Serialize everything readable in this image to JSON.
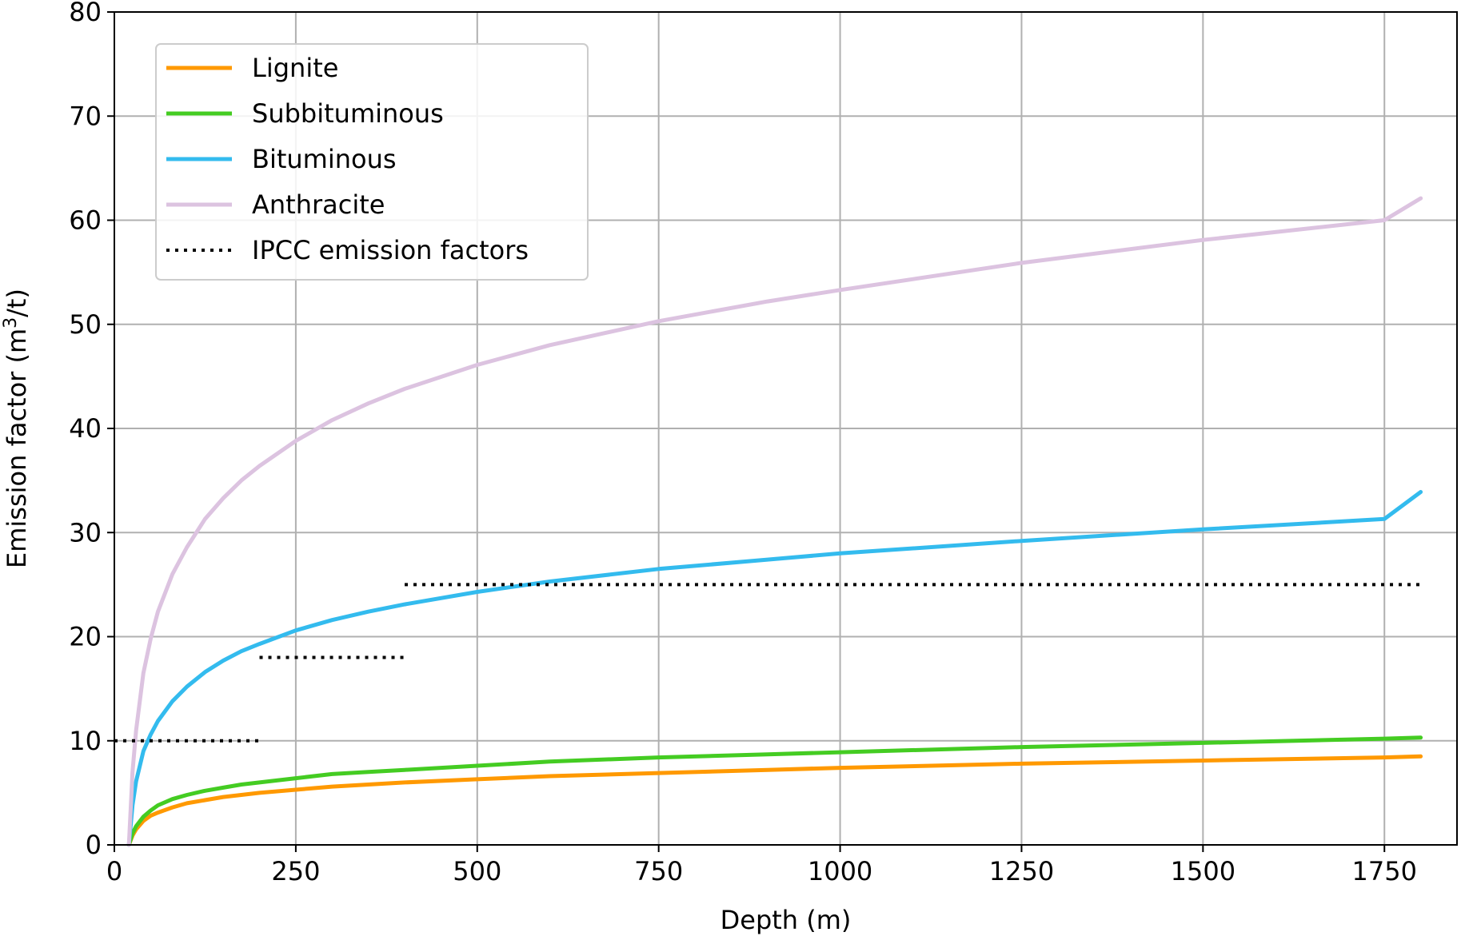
{
  "chart_data": {
    "type": "line",
    "title": "",
    "xlabel": "Depth (m)",
    "ylabel": {
      "prefix": "Emission factor (m",
      "superscript": "3",
      "suffix": "/t)"
    },
    "xlim": [
      0,
      1850
    ],
    "ylim": [
      0,
      80
    ],
    "x_ticks": [
      0,
      250,
      500,
      750,
      1000,
      1250,
      1500,
      1750
    ],
    "y_ticks": [
      0,
      10,
      20,
      30,
      40,
      50,
      60,
      70,
      80
    ],
    "grid": true,
    "legend_position": "upper-left",
    "x": [
      20,
      25,
      30,
      40,
      50,
      60,
      80,
      100,
      125,
      150,
      175,
      200,
      250,
      300,
      350,
      400,
      500,
      600,
      750,
      900,
      1000,
      1250,
      1500,
      1750,
      1800
    ],
    "series": [
      {
        "name": "Lignite",
        "color": "#ff9900",
        "values": [
          0.0,
          0.9,
          1.5,
          2.3,
          2.8,
          3.1,
          3.6,
          4.0,
          4.3,
          4.6,
          4.8,
          5.0,
          5.3,
          5.6,
          5.8,
          6.0,
          6.3,
          6.6,
          6.9,
          7.2,
          7.4,
          7.8,
          8.1,
          8.4,
          8.5
        ]
      },
      {
        "name": "Subbituminous",
        "color": "#44cc22",
        "values": [
          0.0,
          1.1,
          1.8,
          2.7,
          3.3,
          3.8,
          4.4,
          4.8,
          5.2,
          5.5,
          5.8,
          6.0,
          6.4,
          6.8,
          7.0,
          7.2,
          7.6,
          8.0,
          8.4,
          8.7,
          8.9,
          9.4,
          9.8,
          10.2,
          10.3
        ]
      },
      {
        "name": "Bituminous",
        "color": "#33bbee",
        "values": [
          0.0,
          3.8,
          6.1,
          9.0,
          10.6,
          11.9,
          13.8,
          15.2,
          16.6,
          17.7,
          18.6,
          19.3,
          20.6,
          21.6,
          22.4,
          23.1,
          24.3,
          25.3,
          26.5,
          27.4,
          28.0,
          29.2,
          30.3,
          31.3,
          33.9
        ]
      },
      {
        "name": "Anthracite",
        "color": "#dcc3e0",
        "values": [
          0.0,
          7.0,
          11.0,
          16.5,
          19.8,
          22.4,
          26.0,
          28.6,
          31.3,
          33.3,
          35.0,
          36.4,
          38.8,
          40.8,
          42.4,
          43.8,
          46.1,
          48.0,
          50.3,
          52.2,
          53.3,
          55.9,
          58.1,
          60.0,
          62.1
        ]
      }
    ],
    "reference_series": {
      "name": "IPCC emission factors",
      "color": "#000000",
      "style": "dotted",
      "segments": [
        {
          "x": [
            0,
            200
          ],
          "y": 10
        },
        {
          "x": [
            200,
            400
          ],
          "y": 18
        },
        {
          "x": [
            400,
            1800
          ],
          "y": 25
        }
      ]
    }
  }
}
